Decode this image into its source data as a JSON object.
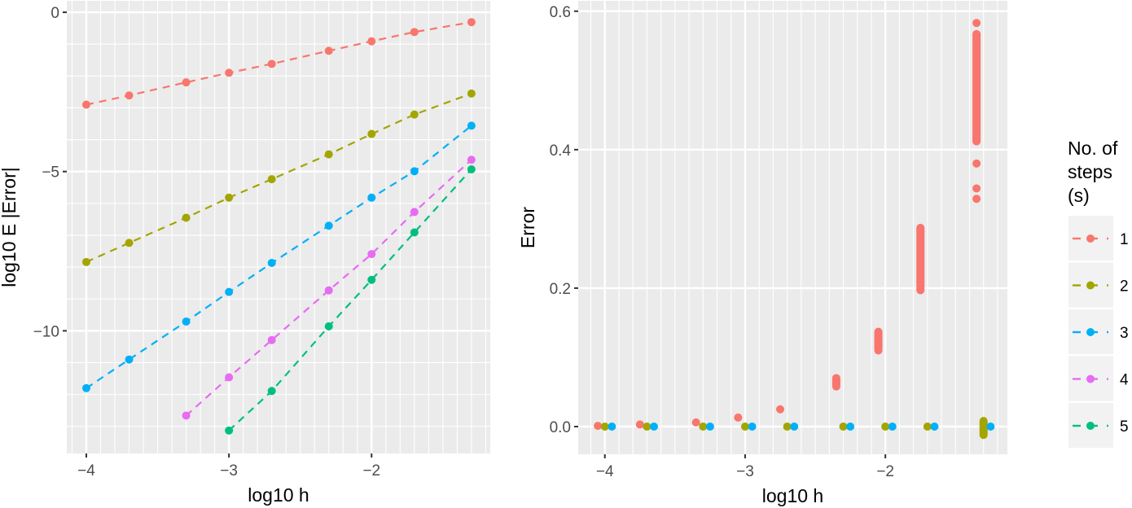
{
  "chart_data": [
    {
      "type": "line",
      "panel": "left",
      "title": "",
      "xlabel": "log10 h",
      "ylabel": "log10 E |Error|",
      "xlim": [
        -4.137,
        -1.168
      ],
      "ylim": [
        -13.85,
        0.36
      ],
      "xticks": [
        -4,
        -3,
        -2
      ],
      "xtick_labels": [
        "−4",
        "−3",
        "−2"
      ],
      "yticks": [
        0,
        -5,
        -10
      ],
      "ytick_labels": [
        "0",
        "−5",
        "−10"
      ],
      "grid": true,
      "line_style": "dashed",
      "series": [
        {
          "name": "1",
          "x": [
            -4,
            -3.7,
            -3.3,
            -3,
            -2.7,
            -2.3,
            -2,
            -1.7,
            -1.3
          ],
          "values": [
            -2.9,
            -2.61,
            -2.2,
            -1.9,
            -1.62,
            -1.21,
            -0.91,
            -0.62,
            -0.31
          ]
        },
        {
          "name": "2",
          "x": [
            -4,
            -3.7,
            -3.3,
            -3,
            -2.7,
            -2.3,
            -2,
            -1.7,
            -1.3
          ],
          "values": [
            -7.84,
            -7.24,
            -6.45,
            -5.82,
            -5.24,
            -4.46,
            -3.82,
            -3.21,
            -2.55
          ]
        },
        {
          "name": "3",
          "x": [
            -4,
            -3.7,
            -3.3,
            -3,
            -2.7,
            -2.3,
            -2,
            -1.7,
            -1.3
          ],
          "values": [
            -11.8,
            -10.9,
            -9.71,
            -8.78,
            -7.87,
            -6.7,
            -5.82,
            -4.99,
            -3.56
          ]
        },
        {
          "name": "4",
          "x": [
            -3.3,
            -3,
            -2.7,
            -2.3,
            -2,
            -1.7,
            -1.3
          ],
          "values": [
            -12.66,
            -11.46,
            -10.29,
            -8.73,
            -7.59,
            -6.27,
            -4.63
          ]
        },
        {
          "name": "5",
          "x": [
            -3,
            -2.7,
            -2.3,
            -2,
            -1.7,
            -1.3
          ],
          "values": [
            -13.13,
            -11.89,
            -9.86,
            -8.4,
            -6.91,
            -4.93
          ]
        }
      ]
    },
    {
      "type": "scatter",
      "panel": "right",
      "title": "",
      "xlabel": "log10 h",
      "ylabel": "Error",
      "xlim": [
        -4.19,
        -1.13
      ],
      "ylim": [
        -0.04,
        0.615
      ],
      "xticks": [
        -4,
        -3,
        -2
      ],
      "xtick_labels": [
        "−4",
        "−3",
        "−2"
      ],
      "yticks": [
        0.0,
        0.2,
        0.4,
        0.6
      ],
      "ytick_labels": [
        "0.0",
        "0.2",
        "0.4",
        "0.6"
      ],
      "grid": true,
      "dodge": 0.05,
      "series": [
        {
          "name": "1",
          "points": [
            {
              "x": -4,
              "ymin": 0.001,
              "ymax": 0.001
            },
            {
              "x": -3.7,
              "ymin": 0.003,
              "ymax": 0.003
            },
            {
              "x": -3.3,
              "ymin": 0.006,
              "ymax": 0.006
            },
            {
              "x": -3,
              "ymin": 0.013,
              "ymax": 0.013
            },
            {
              "x": -2.7,
              "ymin": 0.025,
              "ymax": 0.025
            },
            {
              "x": -2.3,
              "ymin": 0.058,
              "ymax": 0.07
            },
            {
              "x": -2,
              "ymin": 0.11,
              "ymax": 0.137
            },
            {
              "x": -1.7,
              "ymin": 0.197,
              "ymax": 0.287
            },
            {
              "x": -1.3,
              "ymin": 0.412,
              "ymax": 0.567
            },
            {
              "x": -1.3,
              "ymin": 0.583,
              "ymax": 0.583
            },
            {
              "x": -1.3,
              "ymin": 0.38,
              "ymax": 0.38
            },
            {
              "x": -1.3,
              "ymin": 0.344,
              "ymax": 0.344
            },
            {
              "x": -1.3,
              "ymin": 0.329,
              "ymax": 0.329
            }
          ]
        },
        {
          "name": "2",
          "points": [
            {
              "x": -4,
              "ymin": 0,
              "ymax": 0
            },
            {
              "x": -3.7,
              "ymin": 0,
              "ymax": 0
            },
            {
              "x": -3.3,
              "ymin": 0,
              "ymax": 0
            },
            {
              "x": -3,
              "ymin": 0,
              "ymax": 0
            },
            {
              "x": -2.7,
              "ymin": 0,
              "ymax": 0
            },
            {
              "x": -2.3,
              "ymin": 0,
              "ymax": 0
            },
            {
              "x": -2,
              "ymin": 0,
              "ymax": 0
            },
            {
              "x": -1.7,
              "ymin": 0,
              "ymax": 0
            },
            {
              "x": -1.3,
              "ymin": -0.012,
              "ymax": 0.008
            }
          ]
        },
        {
          "name": "3",
          "points": [
            {
              "x": -4,
              "ymin": 0,
              "ymax": 0
            },
            {
              "x": -3.7,
              "ymin": 0,
              "ymax": 0
            },
            {
              "x": -3.3,
              "ymin": 0,
              "ymax": 0
            },
            {
              "x": -3,
              "ymin": 0,
              "ymax": 0
            },
            {
              "x": -2.7,
              "ymin": 0,
              "ymax": 0
            },
            {
              "x": -2.3,
              "ymin": 0,
              "ymax": 0
            },
            {
              "x": -2,
              "ymin": 0,
              "ymax": 0
            },
            {
              "x": -1.7,
              "ymin": 0,
              "ymax": 0
            },
            {
              "x": -1.3,
              "ymin": 0,
              "ymax": 0
            }
          ]
        }
      ]
    }
  ],
  "legend": {
    "title_lines": [
      "No. of",
      "steps",
      "(s)"
    ],
    "items": [
      {
        "label": "1",
        "color": "#F8766D"
      },
      {
        "label": "2",
        "color": "#A3A500"
      },
      {
        "label": "3",
        "color": "#00B0F6"
      },
      {
        "label": "4",
        "color": "#E76BF3"
      },
      {
        "label": "5",
        "color": "#00BF7D"
      }
    ]
  },
  "colors": {
    "panel_bg": "#EBEBEB",
    "grid_major": "#FFFFFF",
    "tick": "#333333"
  }
}
